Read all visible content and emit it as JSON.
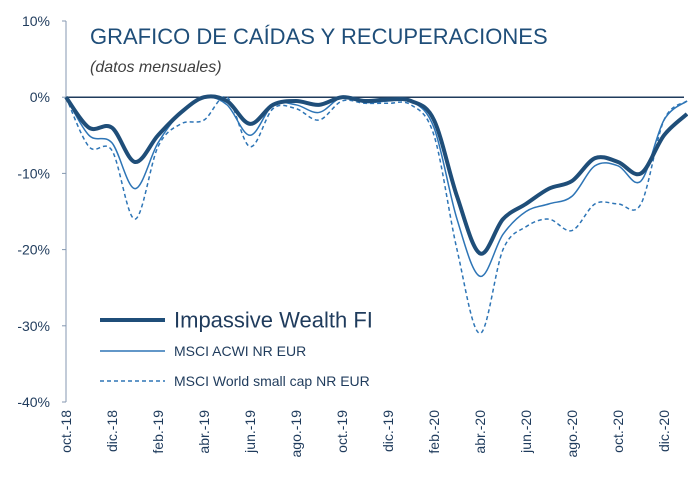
{
  "chart_data": {
    "type": "line",
    "title": "GRAFICO DE CAÍDAS Y RECUPERACIONES",
    "subtitle": "(datos mensuales)",
    "categories": [
      "oct.-18",
      null,
      "dic.-18",
      null,
      "feb.-19",
      null,
      "abr.-19",
      null,
      "jun.-19",
      null,
      "ago.-19",
      null,
      "oct.-19",
      null,
      "dic.-19",
      null,
      "feb.-20",
      null,
      "abr.-20",
      null,
      "jun.-20",
      null,
      "ago.-20",
      null,
      "oct.-20",
      null,
      "dic.-20",
      null
    ],
    "series": [
      {
        "name": "Impassive Wealth FI",
        "color": "#1f4e79",
        "line_width": 4,
        "dash": false,
        "values": [
          0,
          -4,
          -4,
          -8.5,
          -5,
          -2,
          0,
          -0.5,
          -3.5,
          -1,
          -0.5,
          -1,
          0,
          -0.5,
          -0.3,
          -0.5,
          -3,
          -13,
          -20.5,
          -16,
          -14,
          -12,
          -11,
          -8,
          -8.5,
          -10,
          -5,
          -2.2
        ]
      },
      {
        "name": "MSCI ACWI NR EUR",
        "color": "#2e75b6",
        "line_width": 1.5,
        "dash": false,
        "values": [
          0,
          -5,
          -6,
          -12,
          -6,
          -2,
          0,
          -1,
          -5,
          -1,
          -1,
          -2,
          0,
          -0.7,
          -0.5,
          -0.5,
          -4,
          -16,
          -23.5,
          -18,
          -15,
          -14,
          -13,
          -9,
          -9,
          -11,
          -3,
          -0.5
        ]
      },
      {
        "name": "MSCI World small cap NR EUR",
        "color": "#2e75b6",
        "line_width": 1.5,
        "dash": true,
        "values": [
          0,
          -6.5,
          -7,
          -16,
          -6.5,
          -3.5,
          -3,
          0,
          -6.5,
          -1.5,
          -1.5,
          -3,
          -0.5,
          -0.8,
          -0.8,
          -1,
          -5,
          -20,
          -31,
          -20,
          -17,
          -16,
          -17.5,
          -14,
          -14,
          -14,
          -3,
          -0.5
        ]
      }
    ],
    "ylim": [
      -40,
      10
    ],
    "yticks": [
      {
        "value": 10,
        "label": "10%"
      },
      {
        "value": 0,
        "label": "0%"
      },
      {
        "value": -10,
        "label": "-10%"
      },
      {
        "value": -20,
        "label": "-20%"
      },
      {
        "value": -30,
        "label": "-30%"
      },
      {
        "value": -40,
        "label": "-40%"
      }
    ],
    "legend": "lower left"
  }
}
